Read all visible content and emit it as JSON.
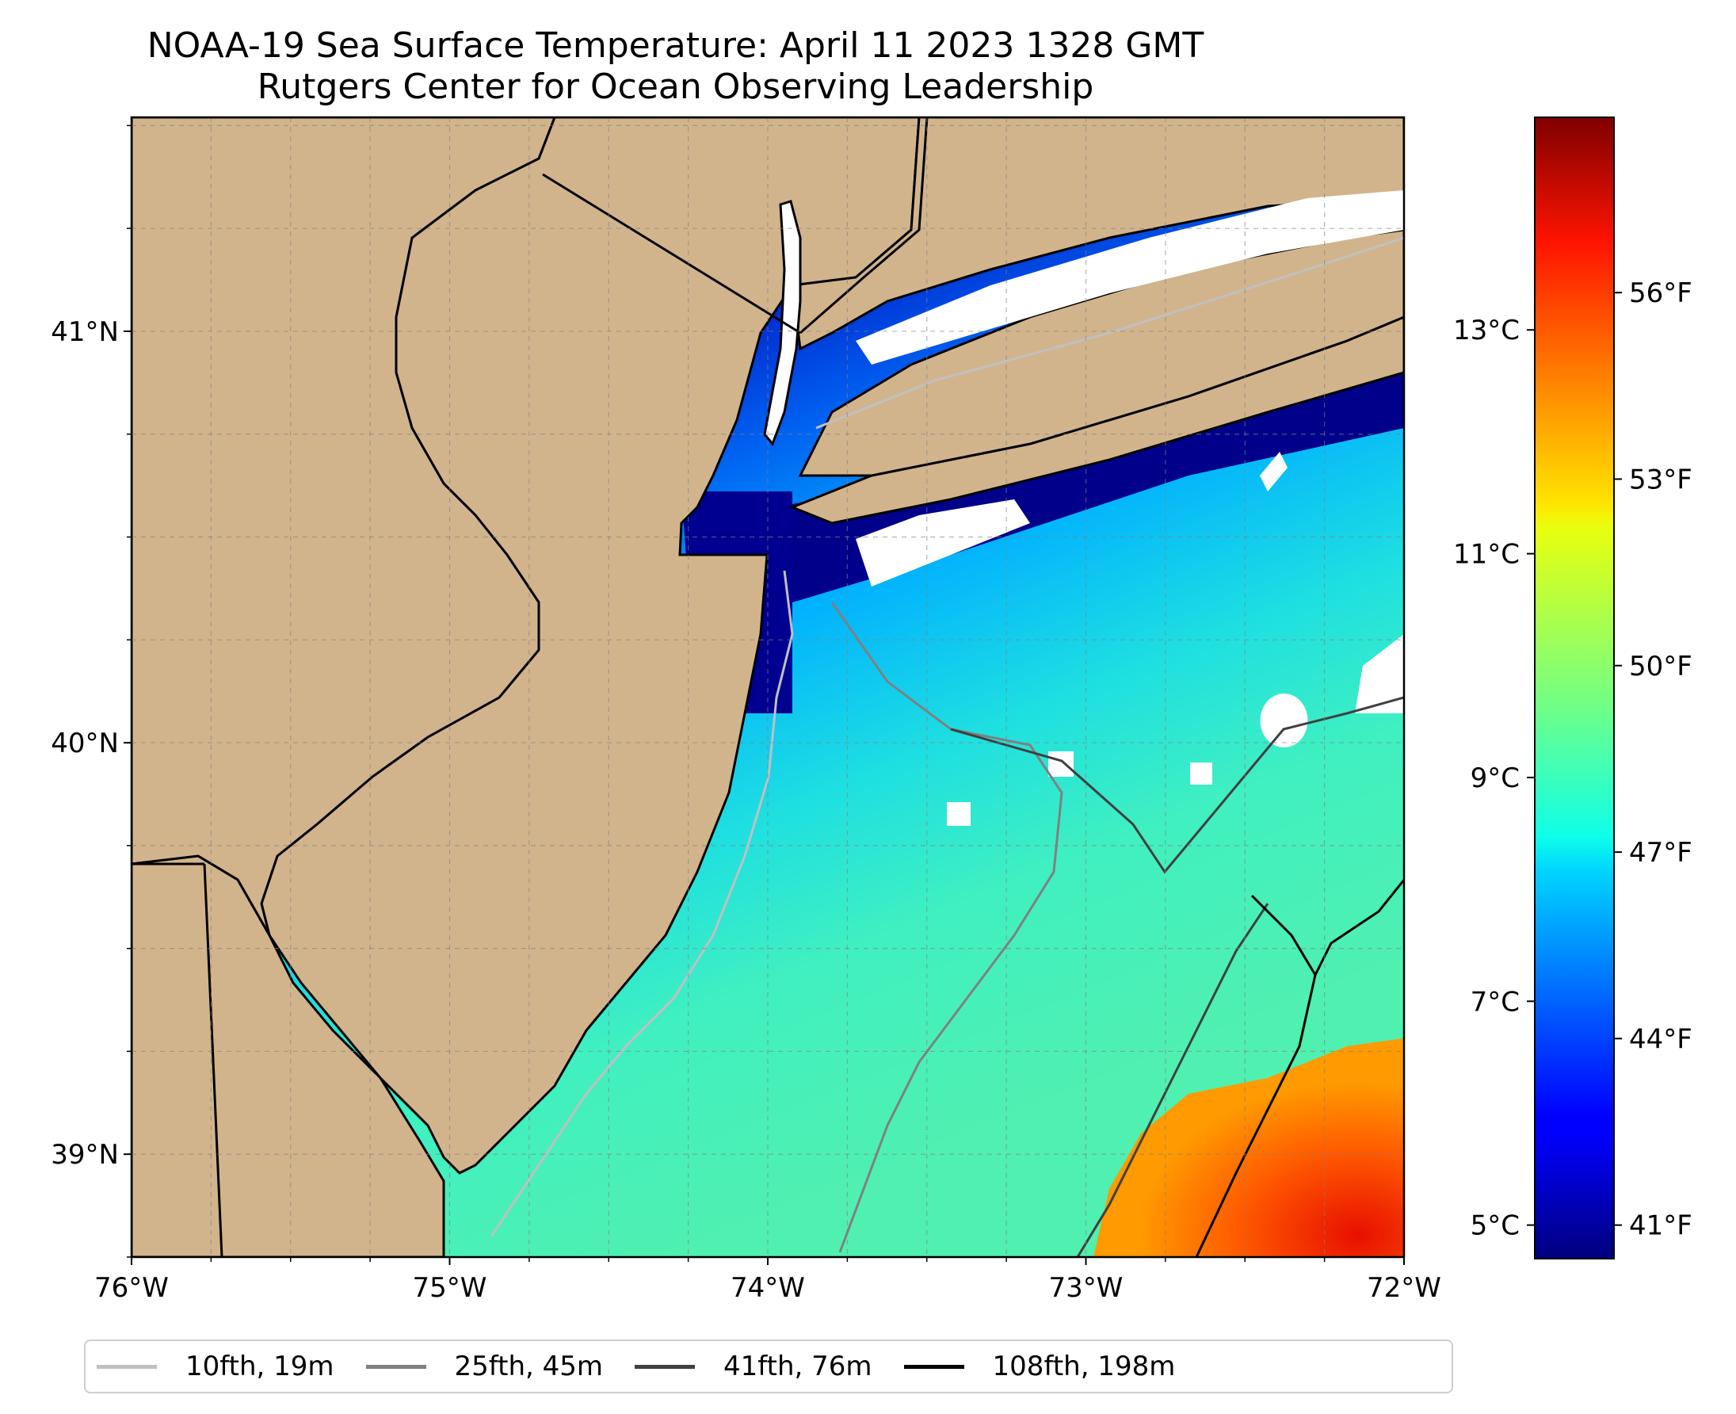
{
  "title": "NOAA-19 Sea Surface Temperature: April 11 2023 1328 GMT",
  "subtitle": "Rutgers Center for Ocean Observing Leadership",
  "map": {
    "extent": {
      "lon_min": -76.0,
      "lon_max": -72.0,
      "lat_min": 38.75,
      "lat_max": 41.52
    },
    "land_color": "#d2b48c",
    "cloud_color": "#ffffff",
    "lon_ticks": [
      {
        "value": -76,
        "label": "76°W"
      },
      {
        "value": -75,
        "label": "75°W"
      },
      {
        "value": -74,
        "label": "74°W"
      },
      {
        "value": -73,
        "label": "73°W"
      },
      {
        "value": -72,
        "label": "72°W"
      }
    ],
    "lat_ticks": [
      {
        "value": 41,
        "label": "41°N"
      },
      {
        "value": 40,
        "label": "40°N"
      },
      {
        "value": 39,
        "label": "39°N"
      }
    ],
    "gridlines": true
  },
  "colorbar": {
    "colormap": "jet",
    "celsius_ticks": [
      {
        "value": 13,
        "label": "13°C"
      },
      {
        "value": 11,
        "label": "11°C"
      },
      {
        "value": 9,
        "label": "9°C"
      },
      {
        "value": 7,
        "label": "7°C"
      },
      {
        "value": 5,
        "label": "5°C"
      }
    ],
    "fahrenheit_ticks": [
      {
        "value": 56,
        "label": "56°F"
      },
      {
        "value": 53,
        "label": "53°F"
      },
      {
        "value": 50,
        "label": "50°F"
      },
      {
        "value": 47,
        "label": "47°F"
      },
      {
        "value": 44,
        "label": "44°F"
      },
      {
        "value": 41,
        "label": "41°F"
      }
    ]
  },
  "legend": [
    {
      "label": "10fth, 19m",
      "color": "#c0c0c0"
    },
    {
      "label": "25fth, 45m",
      "color": "#808080"
    },
    {
      "label": "41fth, 76m",
      "color": "#404040"
    },
    {
      "label": "108fth, 198m",
      "color": "#000000"
    }
  ]
}
